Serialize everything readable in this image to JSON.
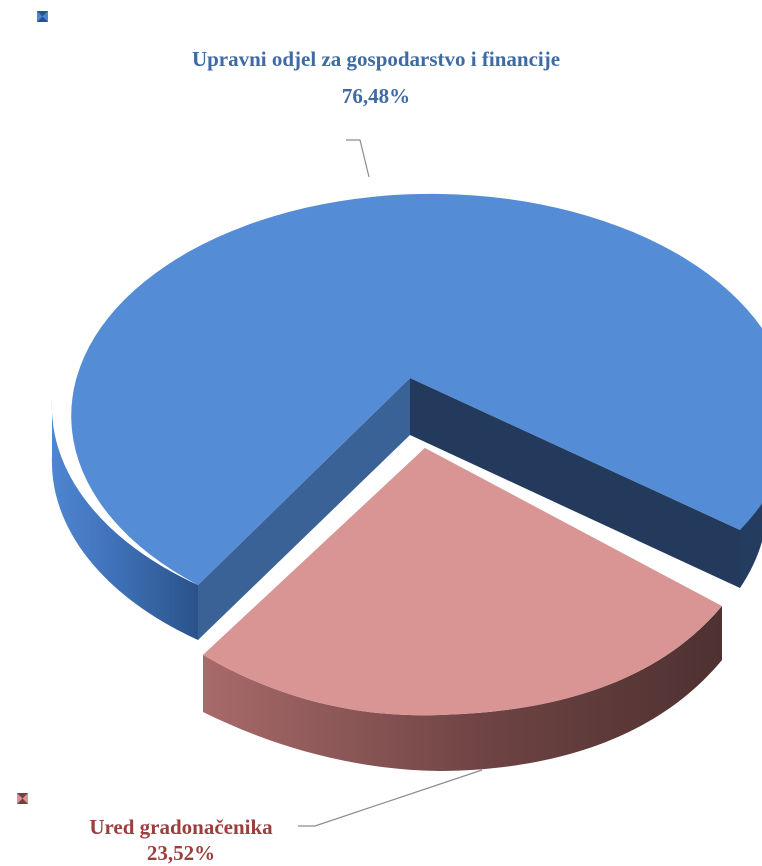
{
  "chart_data": {
    "type": "pie",
    "style": "3d-exploded",
    "categories": [
      "Upravni odjel za gospodarstvo i financije",
      "Ured gradonačenika"
    ],
    "values": [
      76.48,
      23.52
    ],
    "value_labels": [
      "76,48%",
      "23,52%"
    ],
    "colors": [
      "#4f86d2",
      "#d99392"
    ],
    "label_colors": [
      "#3f6aa3",
      "#9a3f3e"
    ],
    "legend": "none"
  }
}
